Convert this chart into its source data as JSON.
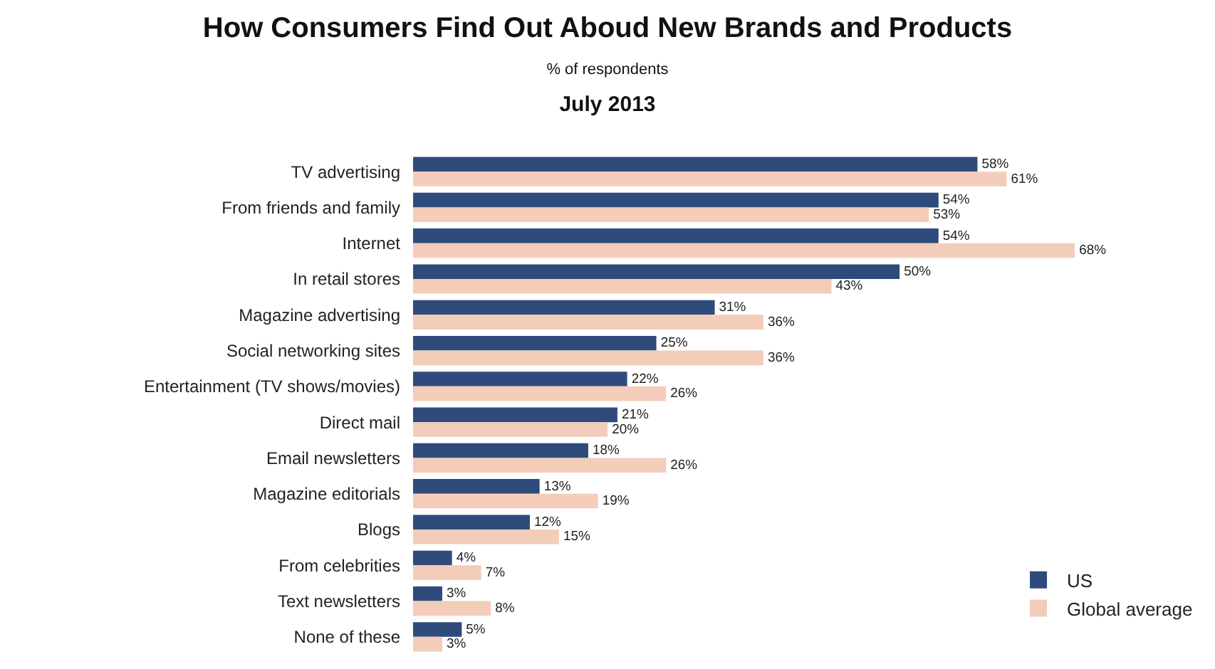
{
  "chart_data": {
    "type": "bar",
    "orientation": "horizontal",
    "title": "How Consumers Find Out Aboud New Brands and Products",
    "subtitle": "% of respondents",
    "annotations": [
      "July 2013"
    ],
    "categories": [
      "TV advertising",
      "From friends and family",
      "Internet",
      "In retail stores",
      "Magazine advertising",
      "Social networking sites",
      "Entertainment (TV shows/movies)",
      "Direct mail",
      "Email newsletters",
      "Magazine editorials",
      "Blogs",
      "From celebrities",
      "Text newsletters",
      "None of these"
    ],
    "series": [
      {
        "name": "US",
        "color": "#2e4b7c",
        "values": [
          58,
          54,
          54,
          50,
          31,
          25,
          22,
          21,
          18,
          13,
          12,
          4,
          3,
          5
        ],
        "value_labels": [
          "58%",
          "54%",
          "54%",
          "50%",
          "31%",
          "25%",
          "22%",
          "21%",
          "18%",
          "13%",
          "12%",
          "4%",
          "3%",
          "5%"
        ]
      },
      {
        "name": "Global average",
        "color": "#f3cdb9",
        "values": [
          61,
          53,
          68,
          43,
          36,
          36,
          26,
          20,
          26,
          19,
          15,
          7,
          8,
          3
        ],
        "value_labels": [
          "61%",
          "53%",
          "68%",
          "43%",
          "36%",
          "36%",
          "26%",
          "20%",
          "26%",
          "19%",
          "15%",
          "7%",
          "8%",
          "3%"
        ]
      }
    ],
    "legend": "bottom right"
  }
}
